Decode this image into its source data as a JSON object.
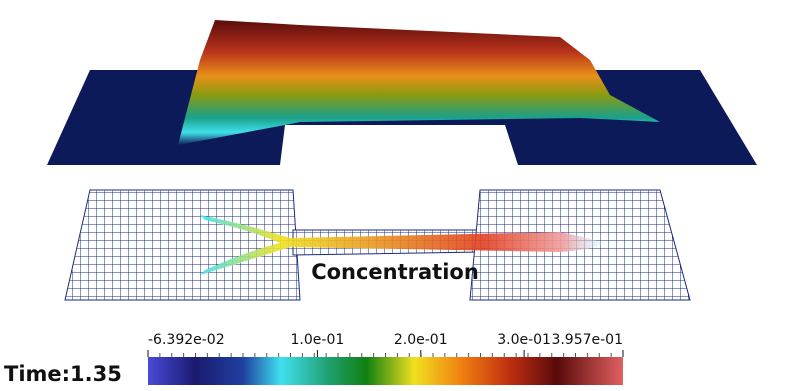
{
  "field_label": "Concentration",
  "time_label": "Time:1.35",
  "colorbar": {
    "ticks": [
      {
        "value": -0.06392,
        "label": "-6.392e-02"
      },
      {
        "value": 0.1,
        "label": "1.0e-01"
      },
      {
        "value": 0.2,
        "label": "2.0e-01"
      },
      {
        "value": 0.3,
        "label": "3.0e-01"
      },
      {
        "value": 0.3957,
        "label": "3.957e-01"
      }
    ]
  }
}
